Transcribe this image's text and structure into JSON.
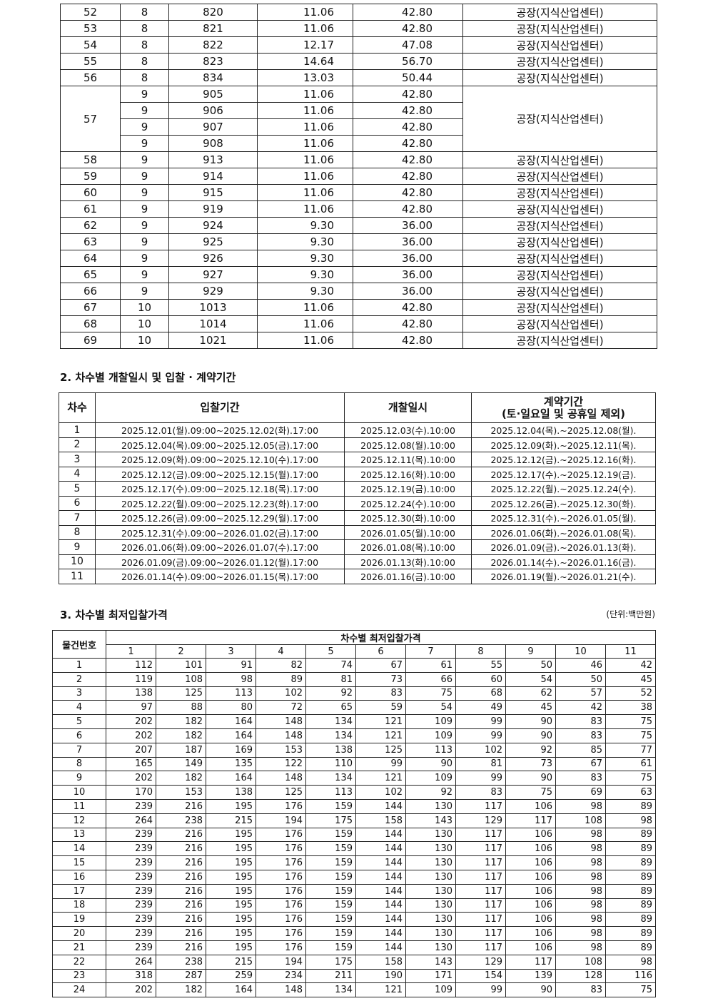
{
  "section1": {
    "rows": [
      {
        "no": "52",
        "floor": "8",
        "room": "820",
        "area_py": "11.06",
        "area_m2": "42.80",
        "use": "공장(지식산업센터)"
      },
      {
        "no": "53",
        "floor": "8",
        "room": "821",
        "area_py": "11.06",
        "area_m2": "42.80",
        "use": "공장(지식산업센터)"
      },
      {
        "no": "54",
        "floor": "8",
        "room": "822",
        "area_py": "12.17",
        "area_m2": "47.08",
        "use": "공장(지식산업센터)"
      },
      {
        "no": "55",
        "floor": "8",
        "room": "823",
        "area_py": "14.64",
        "area_m2": "56.70",
        "use": "공장(지식산업센터)"
      },
      {
        "no": "56",
        "floor": "8",
        "room": "834",
        "area_py": "13.03",
        "area_m2": "50.44",
        "use": "공장(지식산업센터)"
      },
      {
        "no": "57",
        "use": "공장(지식산업센터)",
        "sub": [
          {
            "floor": "9",
            "room": "905",
            "area_py": "11.06",
            "area_m2": "42.80"
          },
          {
            "floor": "9",
            "room": "906",
            "area_py": "11.06",
            "area_m2": "42.80"
          },
          {
            "floor": "9",
            "room": "907",
            "area_py": "11.06",
            "area_m2": "42.80"
          },
          {
            "floor": "9",
            "room": "908",
            "area_py": "11.06",
            "area_m2": "42.80"
          }
        ]
      },
      {
        "no": "58",
        "floor": "9",
        "room": "913",
        "area_py": "11.06",
        "area_m2": "42.80",
        "use": "공장(지식산업센터)"
      },
      {
        "no": "59",
        "floor": "9",
        "room": "914",
        "area_py": "11.06",
        "area_m2": "42.80",
        "use": "공장(지식산업센터)"
      },
      {
        "no": "60",
        "floor": "9",
        "room": "915",
        "area_py": "11.06",
        "area_m2": "42.80",
        "use": "공장(지식산업센터)"
      },
      {
        "no": "61",
        "floor": "9",
        "room": "919",
        "area_py": "11.06",
        "area_m2": "42.80",
        "use": "공장(지식산업센터)"
      },
      {
        "no": "62",
        "floor": "9",
        "room": "924",
        "area_py": "9.30",
        "area_m2": "36.00",
        "use": "공장(지식산업센터)"
      },
      {
        "no": "63",
        "floor": "9",
        "room": "925",
        "area_py": "9.30",
        "area_m2": "36.00",
        "use": "공장(지식산업센터)"
      },
      {
        "no": "64",
        "floor": "9",
        "room": "926",
        "area_py": "9.30",
        "area_m2": "36.00",
        "use": "공장(지식산업센터)"
      },
      {
        "no": "65",
        "floor": "9",
        "room": "927",
        "area_py": "9.30",
        "area_m2": "36.00",
        "use": "공장(지식산업센터)"
      },
      {
        "no": "66",
        "floor": "9",
        "room": "929",
        "area_py": "9.30",
        "area_m2": "36.00",
        "use": "공장(지식산업센터)"
      },
      {
        "no": "67",
        "floor": "10",
        "room": "1013",
        "area_py": "11.06",
        "area_m2": "42.80",
        "use": "공장(지식산업센터)"
      },
      {
        "no": "68",
        "floor": "10",
        "room": "1014",
        "area_py": "11.06",
        "area_m2": "42.80",
        "use": "공장(지식산업센터)"
      },
      {
        "no": "69",
        "floor": "10",
        "room": "1021",
        "area_py": "11.06",
        "area_m2": "42.80",
        "use": "공장(지식산업센터)"
      }
    ]
  },
  "section2": {
    "title": "2. 차수별 개찰일시 및 입찰 · 계약기간",
    "headers": {
      "round": "차수",
      "bid_period": "입찰기간",
      "opening": "개찰일시",
      "contract_line1": "계약기간",
      "contract_line2": "(토·일요일 및 공휴일 제외)"
    },
    "rows": [
      [
        "1",
        "2025.12.01(월).09:00~2025.12.02(화).17:00",
        "2025.12.03(수).10:00",
        "2025.12.04(목).~2025.12.08(월)."
      ],
      [
        "2",
        "2025.12.04(목).09:00~2025.12.05(금).17:00",
        "2025.12.08(월).10:00",
        "2025.12.09(화).~2025.12.11(목)."
      ],
      [
        "3",
        "2025.12.09(화).09:00~2025.12.10(수).17:00",
        "2025.12.11(목).10:00",
        "2025.12.12(금).~2025.12.16(화)."
      ],
      [
        "4",
        "2025.12.12(금).09:00~2025.12.15(월).17:00",
        "2025.12.16(화).10:00",
        "2025.12.17(수).~2025.12.19(금)."
      ],
      [
        "5",
        "2025.12.17(수).09:00~2025.12.18(목).17:00",
        "2025.12.19(금).10:00",
        "2025.12.22(월).~2025.12.24(수)."
      ],
      [
        "6",
        "2025.12.22(월).09:00~2025.12.23(화).17:00",
        "2025.12.24(수).10:00",
        "2025.12.26(금).~2025.12.30(화)."
      ],
      [
        "7",
        "2025.12.26(금).09:00~2025.12.29(월).17:00",
        "2025.12.30(화).10:00",
        "2025.12.31(수).~2026.01.05(월)."
      ],
      [
        "8",
        "2025.12.31(수).09:00~2026.01.02(금).17:00",
        "2026.01.05(월).10:00",
        "2026.01.06(화).~2026.01.08(목)."
      ],
      [
        "9",
        "2026.01.06(화).09:00~2026.01.07(수).17:00",
        "2026.01.08(목).10:00",
        "2026.01.09(금).~2026.01.13(화)."
      ],
      [
        "10",
        "2026.01.09(금).09:00~2026.01.12(월).17:00",
        "2026.01.13(화).10:00",
        "2026.01.14(수).~2026.01.16(금)."
      ],
      [
        "11",
        "2026.01.14(수).09:00~2026.01.15(목).17:00",
        "2026.01.16(금).10:00",
        "2026.01.19(월).~2026.01.21(수)."
      ]
    ]
  },
  "section3": {
    "title": "3. 차수별 최저입찰가격",
    "unit": "(단위:백만원)",
    "header_item": "물건번호",
    "header_group": "차수별 최저입찰가격",
    "rounds": [
      "1",
      "2",
      "3",
      "4",
      "5",
      "6",
      "7",
      "8",
      "9",
      "10",
      "11"
    ],
    "rows": [
      [
        "1",
        "112",
        "101",
        "91",
        "82",
        "74",
        "67",
        "61",
        "55",
        "50",
        "46",
        "42"
      ],
      [
        "2",
        "119",
        "108",
        "98",
        "89",
        "81",
        "73",
        "66",
        "60",
        "54",
        "50",
        "45"
      ],
      [
        "3",
        "138",
        "125",
        "113",
        "102",
        "92",
        "83",
        "75",
        "68",
        "62",
        "57",
        "52"
      ],
      [
        "4",
        "97",
        "88",
        "80",
        "72",
        "65",
        "59",
        "54",
        "49",
        "45",
        "42",
        "38"
      ],
      [
        "5",
        "202",
        "182",
        "164",
        "148",
        "134",
        "121",
        "109",
        "99",
        "90",
        "83",
        "75"
      ],
      [
        "6",
        "202",
        "182",
        "164",
        "148",
        "134",
        "121",
        "109",
        "99",
        "90",
        "83",
        "75"
      ],
      [
        "7",
        "207",
        "187",
        "169",
        "153",
        "138",
        "125",
        "113",
        "102",
        "92",
        "85",
        "77"
      ],
      [
        "8",
        "165",
        "149",
        "135",
        "122",
        "110",
        "99",
        "90",
        "81",
        "73",
        "67",
        "61"
      ],
      [
        "9",
        "202",
        "182",
        "164",
        "148",
        "134",
        "121",
        "109",
        "99",
        "90",
        "83",
        "75"
      ],
      [
        "10",
        "170",
        "153",
        "138",
        "125",
        "113",
        "102",
        "92",
        "83",
        "75",
        "69",
        "63"
      ],
      [
        "11",
        "239",
        "216",
        "195",
        "176",
        "159",
        "144",
        "130",
        "117",
        "106",
        "98",
        "89"
      ],
      [
        "12",
        "264",
        "238",
        "215",
        "194",
        "175",
        "158",
        "143",
        "129",
        "117",
        "108",
        "98"
      ],
      [
        "13",
        "239",
        "216",
        "195",
        "176",
        "159",
        "144",
        "130",
        "117",
        "106",
        "98",
        "89"
      ],
      [
        "14",
        "239",
        "216",
        "195",
        "176",
        "159",
        "144",
        "130",
        "117",
        "106",
        "98",
        "89"
      ],
      [
        "15",
        "239",
        "216",
        "195",
        "176",
        "159",
        "144",
        "130",
        "117",
        "106",
        "98",
        "89"
      ],
      [
        "16",
        "239",
        "216",
        "195",
        "176",
        "159",
        "144",
        "130",
        "117",
        "106",
        "98",
        "89"
      ],
      [
        "17",
        "239",
        "216",
        "195",
        "176",
        "159",
        "144",
        "130",
        "117",
        "106",
        "98",
        "89"
      ],
      [
        "18",
        "239",
        "216",
        "195",
        "176",
        "159",
        "144",
        "130",
        "117",
        "106",
        "98",
        "89"
      ],
      [
        "19",
        "239",
        "216",
        "195",
        "176",
        "159",
        "144",
        "130",
        "117",
        "106",
        "98",
        "89"
      ],
      [
        "20",
        "239",
        "216",
        "195",
        "176",
        "159",
        "144",
        "130",
        "117",
        "106",
        "98",
        "89"
      ],
      [
        "21",
        "239",
        "216",
        "195",
        "176",
        "159",
        "144",
        "130",
        "117",
        "106",
        "98",
        "89"
      ],
      [
        "22",
        "264",
        "238",
        "215",
        "194",
        "175",
        "158",
        "143",
        "129",
        "117",
        "108",
        "98"
      ],
      [
        "23",
        "318",
        "287",
        "259",
        "234",
        "211",
        "190",
        "171",
        "154",
        "139",
        "128",
        "116"
      ],
      [
        "24",
        "202",
        "182",
        "164",
        "148",
        "134",
        "121",
        "109",
        "99",
        "90",
        "83",
        "75"
      ]
    ]
  }
}
